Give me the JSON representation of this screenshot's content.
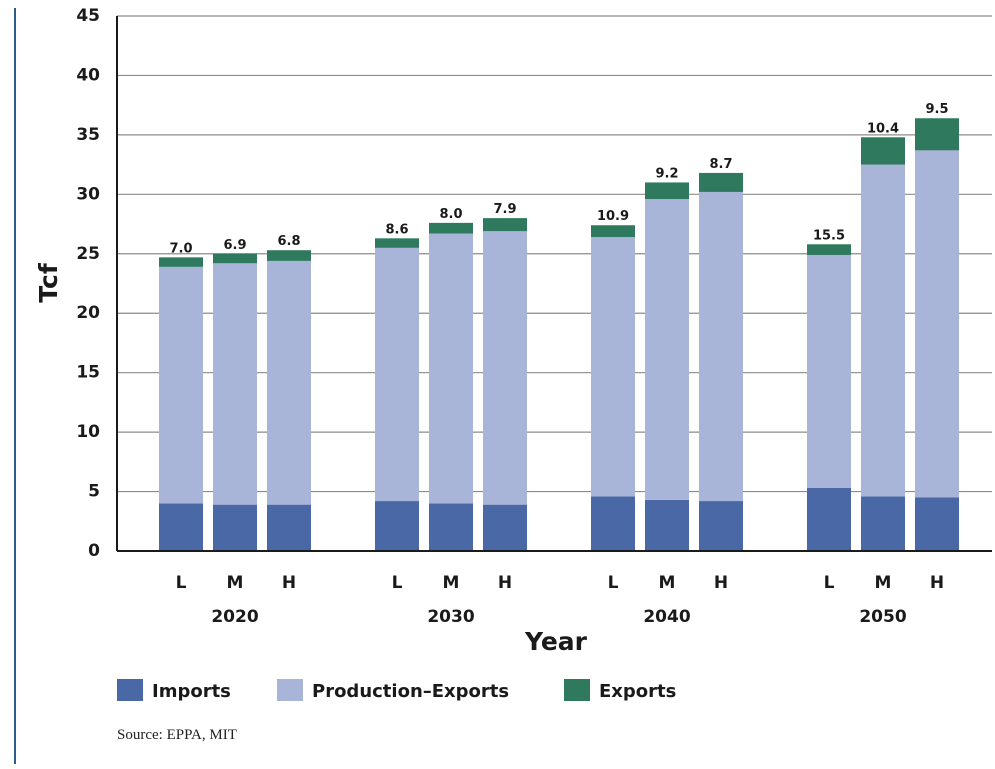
{
  "chart_data": {
    "type": "bar",
    "stacked": true,
    "ylabel": "Tcf",
    "xlabel": "Year",
    "ylim": [
      0,
      45
    ],
    "yticks": [
      0,
      5,
      10,
      15,
      20,
      25,
      30,
      35,
      40,
      45
    ],
    "grid": true,
    "legend_position": "bottom-left",
    "groups": [
      "2020",
      "2030",
      "2040",
      "2050"
    ],
    "scenarios": [
      "L",
      "M",
      "H"
    ],
    "series": [
      {
        "name": "Imports",
        "color": "#4a68a6",
        "values": [
          4.0,
          3.9,
          3.9,
          4.2,
          4.0,
          3.9,
          4.6,
          4.3,
          4.2,
          5.3,
          4.6,
          4.5
        ]
      },
      {
        "name": "Production–Exports",
        "color": "#a9b5d8",
        "values": [
          19.9,
          20.3,
          20.5,
          21.3,
          22.7,
          23.0,
          21.8,
          25.3,
          26.0,
          19.6,
          27.9,
          29.2
        ]
      },
      {
        "name": "Exports",
        "color": "#2f7a5e",
        "values": [
          0.8,
          0.8,
          0.9,
          0.8,
          0.9,
          1.1,
          1.0,
          1.4,
          1.6,
          0.9,
          2.3,
          2.7
        ]
      }
    ],
    "data_labels": [
      "7.0",
      "6.9",
      "6.8",
      "8.6",
      "8.0",
      "7.9",
      "10.9",
      "9.2",
      "8.7",
      "15.5",
      "10.4",
      "9.5"
    ]
  },
  "source": "Source: EPPA, MIT"
}
